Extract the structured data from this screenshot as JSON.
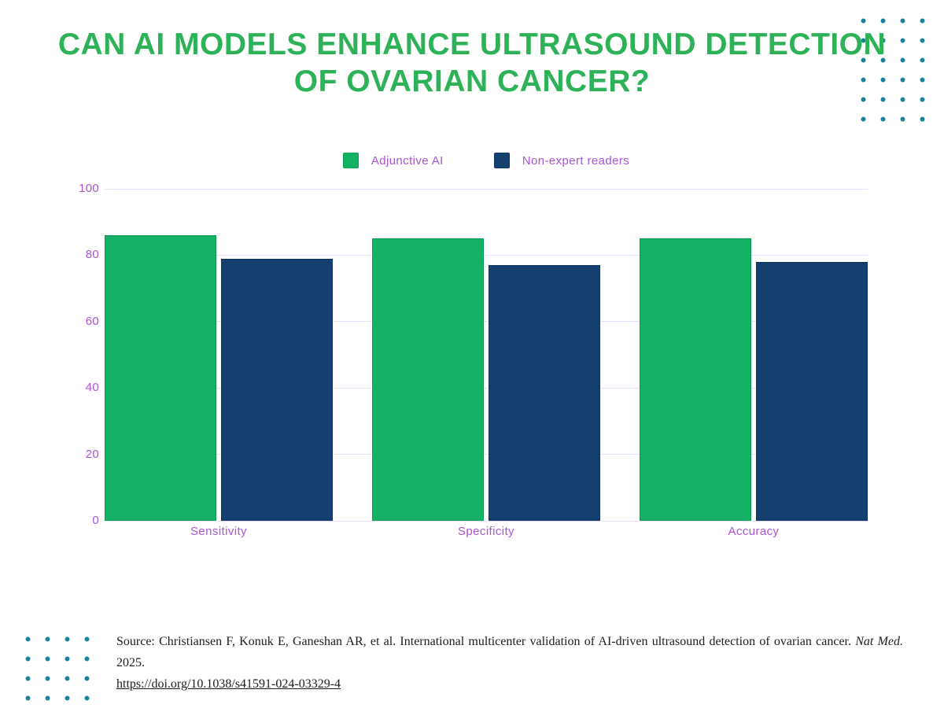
{
  "page": {
    "title_line1": "CAN AI MODELS ENHANCE ULTRASOUND DETECTION",
    "title_line2": "OF OVARIAN CANCER?"
  },
  "legend": [
    {
      "label": "Adjunctive AI",
      "color": "#14b164",
      "border": "#0d9e56"
    },
    {
      "label": "Non-expert readers",
      "color": "#143f6e",
      "border": "#0d3560"
    }
  ],
  "chart_data": {
    "type": "bar",
    "categories": [
      "Sensitivity",
      "Specificity",
      "Accuracy"
    ],
    "series": [
      {
        "name": "Adjunctive AI",
        "color": "#14b164",
        "border": "#0d9e56",
        "values": [
          86,
          85,
          85
        ]
      },
      {
        "name": "Non-expert readers",
        "color": "#143f6e",
        "border": "#0d3560",
        "values": [
          79,
          77,
          78
        ]
      }
    ],
    "title": "",
    "xlabel": "",
    "ylabel": "",
    "ylim": [
      0,
      100
    ],
    "yticks": [
      0,
      20,
      40,
      60,
      80,
      100
    ],
    "grid": true,
    "legend_position": "top"
  },
  "source": {
    "prefix": "Source: Christiansen F, Konuk E, Ganeshan AR, et al. International multicenter validation of AI-driven ultrasound detection of ovarian cancer.",
    "journal": "Nat Med.",
    "year": "2025.",
    "link": "https://doi.org/10.1038/s41591-024-03329-4"
  },
  "colors": {
    "title_green": "#2db257",
    "bar_green": "#14b164",
    "bar_navy": "#143f6e",
    "label_purple": "#ab54d6",
    "gridline": "#eedef7",
    "dots_teal": "#17809a"
  }
}
